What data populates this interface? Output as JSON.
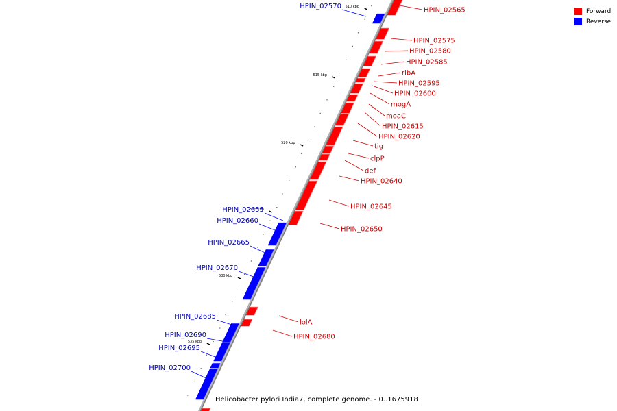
{
  "legend": {
    "forward_label": "Forward",
    "forward_color": "#ff0000",
    "reverse_label": "Reverse",
    "reverse_color": "#0000ff"
  },
  "caption": "Helicobacter pylori India7, complete genome. - 0..1675918",
  "colors": {
    "forward_label": "#cc0000",
    "reverse_label": "#0000aa",
    "backbone": "#777777"
  },
  "ticks": [
    "510 kbp",
    "515 kbp",
    "520 kbp",
    "525 kbp",
    "530 kbp",
    "535 kbp"
  ],
  "forward_genes": [
    "HPIN_02565",
    "HPIN_02575",
    "HPIN_02580",
    "HPIN_02585",
    "ribA",
    "HPIN_02595",
    "HPIN_02600",
    "mogA",
    "moaC",
    "HPIN_02615",
    "HPIN_02620",
    "tig",
    "clpP",
    "def",
    "HPIN_02640",
    "HPIN_02645",
    "HPIN_02650",
    "lolA",
    "HPIN_02680"
  ],
  "reverse_genes": [
    "HPIN_02570",
    "HPIN_02655",
    "HPIN_02660",
    "HPIN_02665",
    "HPIN_02670",
    "HPIN_02685",
    "HPIN_02690",
    "HPIN_02695",
    "HPIN_02700"
  ]
}
